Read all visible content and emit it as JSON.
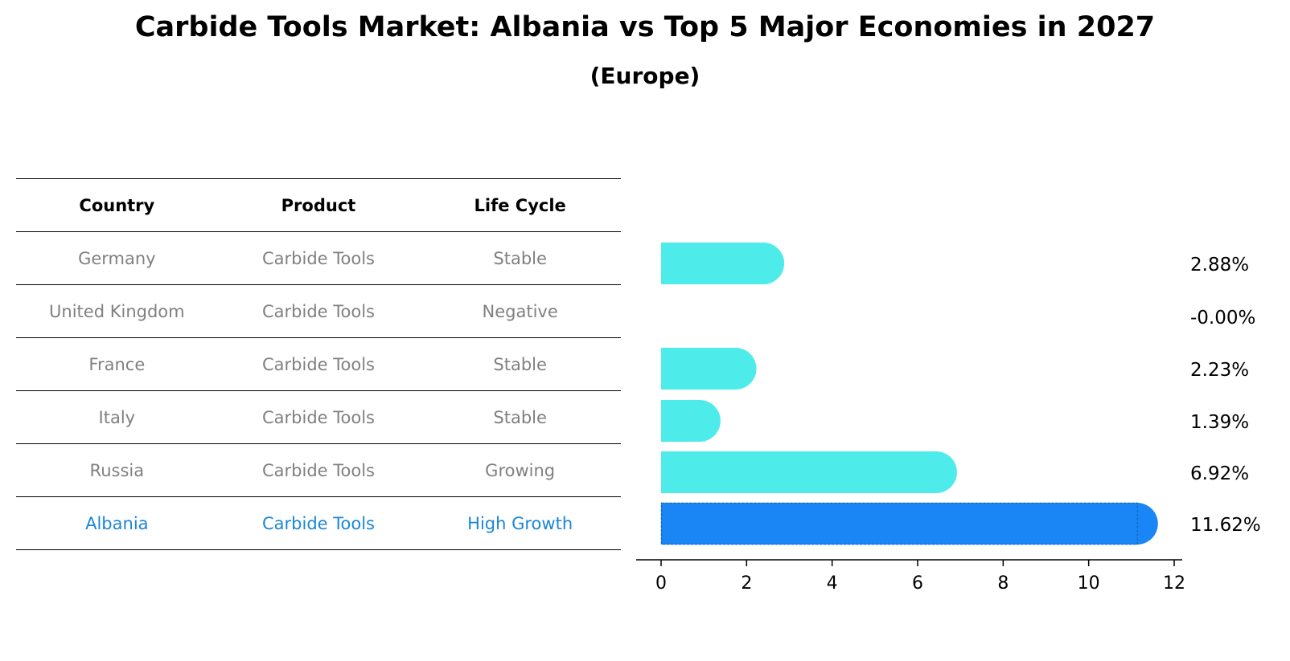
{
  "title": "Carbide Tools Market: Albania vs Top 5 Major Economies in 2027",
  "subtitle": "(Europe)",
  "table": {
    "headers": [
      "Country",
      "Product",
      "Life Cycle"
    ],
    "rows": [
      {
        "country": "Germany",
        "product": "Carbide Tools",
        "life_cycle": "Stable"
      },
      {
        "country": "United Kingdom",
        "product": "Carbide Tools",
        "life_cycle": "Negative"
      },
      {
        "country": "France",
        "product": "Carbide Tools",
        "life_cycle": "Stable"
      },
      {
        "country": "Italy",
        "product": "Carbide Tools",
        "life_cycle": "Stable"
      },
      {
        "country": "Russia",
        "product": "Carbide Tools",
        "life_cycle": "Growing"
      },
      {
        "country": "Albania",
        "product": "Carbide Tools",
        "life_cycle": "High Growth"
      }
    ]
  },
  "chart_data": {
    "type": "bar",
    "orientation": "horizontal",
    "categories": [
      "Germany",
      "United Kingdom",
      "France",
      "Italy",
      "Russia",
      "Albania"
    ],
    "values": [
      2.88,
      -0.0,
      2.23,
      1.39,
      6.92,
      11.62
    ],
    "value_labels": [
      "2.88%",
      "-0.00%",
      "2.23%",
      "1.39%",
      "6.92%",
      "11.62%"
    ],
    "highlight_index": 5,
    "xlim": [
      0,
      12
    ],
    "xticks": [
      0,
      2,
      4,
      6,
      8,
      10,
      12
    ],
    "colors": {
      "default": "#4eebeb",
      "highlight": "#1a86f5"
    },
    "xlabel": "",
    "ylabel": ""
  },
  "colors": {
    "highlight_text": "#1a86d9",
    "muted_text": "#808080"
  }
}
